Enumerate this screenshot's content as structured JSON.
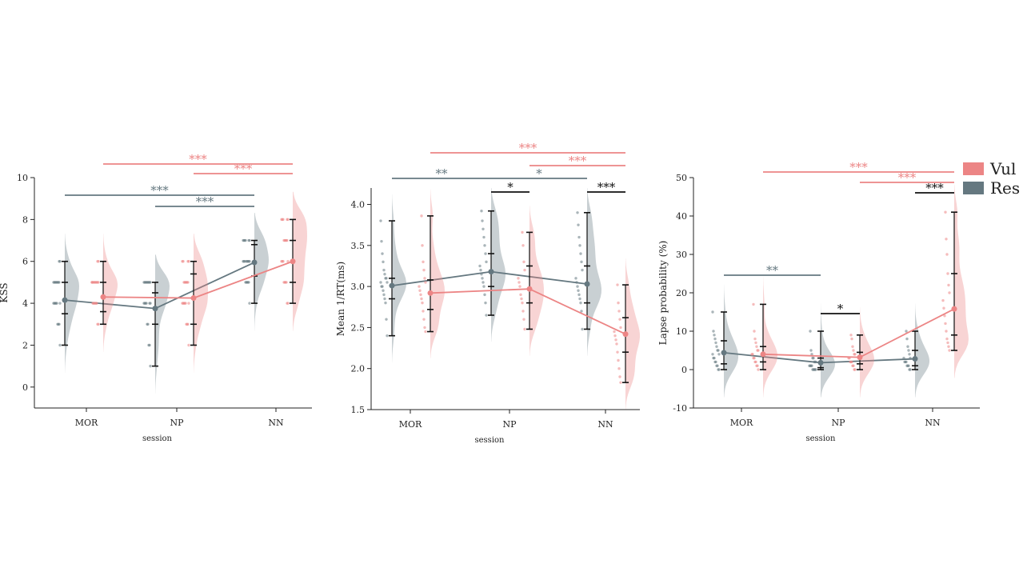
{
  "colors": {
    "vul": "#EC8585",
    "res": "#657880",
    "sig_black": "#111111"
  },
  "legend": {
    "items": [
      {
        "label": "Vul",
        "color": "#EC8585"
      },
      {
        "label": "Res",
        "color": "#657880"
      }
    ]
  },
  "chart_data": [
    {
      "type": "raincloud",
      "ylabel": "KSS",
      "xlabel": "session",
      "categories": [
        "MOR",
        "NP",
        "NN"
      ],
      "ylim": [
        -1,
        10
      ],
      "yticks": [
        0,
        2,
        4,
        6,
        8,
        10
      ],
      "series": [
        {
          "name": "Res",
          "color": "#657880",
          "means": [
            4.15,
            3.75,
            5.95
          ],
          "ci": [
            [
              3.5,
              5.0
            ],
            [
              3.0,
              4.5
            ],
            [
              5.3,
              6.8
            ]
          ],
          "range": [
            [
              2,
              6
            ],
            [
              1,
              5
            ],
            [
              4,
              7
            ]
          ],
          "points": [
            [
              2,
              3,
              3,
              3,
              4,
              4,
              4,
              4,
              4,
              4,
              5,
              5,
              5,
              5,
              5,
              5,
              5,
              5,
              6,
              6
            ],
            [
              1,
              2,
              2,
              3,
              3,
              4,
              4,
              4,
              4,
              4,
              4,
              5,
              5,
              5,
              5,
              5,
              5,
              5,
              5,
              5
            ],
            [
              4,
              5,
              5,
              5,
              5,
              5,
              6,
              6,
              6,
              6,
              6,
              6,
              6,
              6,
              7,
              7,
              7,
              7,
              7,
              7
            ]
          ]
        },
        {
          "name": "Vul",
          "color": "#EC8585",
          "means": [
            4.3,
            4.25,
            6.0
          ],
          "ci": [
            [
              3.6,
              5.0
            ],
            [
              3.0,
              5.4
            ],
            [
              5.0,
              7.0
            ]
          ],
          "range": [
            [
              3,
              6
            ],
            [
              2,
              6
            ],
            [
              4,
              8
            ]
          ],
          "points": [
            [
              3,
              3,
              4,
              4,
              4,
              4,
              4,
              4,
              5,
              5,
              5,
              5,
              5,
              5,
              5,
              5,
              5,
              5,
              6,
              6
            ],
            [
              2,
              3,
              3,
              3,
              4,
              4,
              4,
              4,
              4,
              4,
              5,
              5,
              5,
              5,
              5,
              5,
              6,
              6,
              6,
              6
            ],
            [
              4,
              4,
              5,
              5,
              5,
              5,
              6,
              6,
              6,
              6,
              7,
              7,
              7,
              7,
              7,
              8,
              8,
              8,
              8,
              8
            ]
          ]
        }
      ],
      "significance": [
        {
          "from": 0,
          "to": 2,
          "label": "***",
          "color": "vul"
        },
        {
          "from": 1,
          "to": 2,
          "label": "***",
          "color": "vul"
        },
        {
          "from": 0,
          "to": 2,
          "label": "***",
          "color": "res"
        },
        {
          "from": 1,
          "to": 2,
          "label": "***",
          "color": "res"
        }
      ]
    },
    {
      "type": "raincloud",
      "ylabel": "Mean 1/RT(ms)",
      "xlabel": "session",
      "categories": [
        "MOR",
        "NP",
        "NN"
      ],
      "ylim": [
        1.5,
        4.2
      ],
      "yticks": [
        1.5,
        2.0,
        2.5,
        3.0,
        3.5,
        4.0
      ],
      "series": [
        {
          "name": "Res",
          "color": "#657880",
          "means": [
            3.01,
            3.18,
            3.03
          ],
          "ci": [
            [
              2.85,
              3.1
            ],
            [
              3.0,
              3.4
            ],
            [
              2.8,
              3.25
            ]
          ],
          "range": [
            [
              2.4,
              3.8
            ],
            [
              2.65,
              3.92
            ],
            [
              2.48,
              3.9
            ]
          ],
          "points": [
            [
              2.4,
              2.6,
              2.8,
              2.85,
              2.9,
              2.95,
              3.0,
              3.0,
              3.05,
              3.05,
              3.1,
              3.1,
              3.15,
              3.2,
              3.3,
              3.4,
              3.55,
              3.8
            ],
            [
              2.65,
              2.8,
              2.9,
              3.0,
              3.05,
              3.1,
              3.15,
              3.2,
              3.25,
              3.3,
              3.4,
              3.5,
              3.6,
              3.7,
              3.8,
              3.92
            ],
            [
              2.48,
              2.7,
              2.8,
              2.85,
              2.9,
              2.95,
              3.0,
              3.05,
              3.1,
              3.2,
              3.3,
              3.4,
              3.5,
              3.6,
              3.75,
              3.9
            ]
          ]
        },
        {
          "name": "Vul",
          "color": "#EC8585",
          "means": [
            2.92,
            2.97,
            2.42
          ],
          "ci": [
            [
              2.72,
              3.08
            ],
            [
              2.8,
              3.25
            ],
            [
              2.2,
              2.62
            ]
          ],
          "range": [
            [
              2.45,
              3.86
            ],
            [
              2.48,
              3.66
            ],
            [
              1.83,
              3.02
            ]
          ],
          "points": [
            [
              2.45,
              2.5,
              2.6,
              2.7,
              2.8,
              2.85,
              2.9,
              2.95,
              3.0,
              3.05,
              3.1,
              3.2,
              3.3,
              3.5,
              3.86
            ],
            [
              2.48,
              2.6,
              2.7,
              2.8,
              2.85,
              2.9,
              3.0,
              3.05,
              3.1,
              3.2,
              3.3,
              3.5,
              3.66
            ],
            [
              1.83,
              1.9,
              2.0,
              2.1,
              2.2,
              2.3,
              2.35,
              2.4,
              2.45,
              2.5,
              2.6,
              2.7,
              2.8,
              3.02
            ]
          ]
        }
      ],
      "significance": [
        {
          "from": 0,
          "to": 2,
          "label": "***",
          "color": "vul"
        },
        {
          "from": 1,
          "to": 2,
          "label": "***",
          "color": "vul"
        },
        {
          "from": 0,
          "to": 1,
          "label": "**",
          "color": "res"
        },
        {
          "from": 1,
          "to": 2,
          "label": "*",
          "color": "res"
        },
        {
          "within": 1,
          "label": "*",
          "color": "black"
        },
        {
          "within": 2,
          "label": "***",
          "color": "black"
        }
      ]
    },
    {
      "type": "raincloud",
      "ylabel": "Lapse probability (%)",
      "xlabel": "session",
      "categories": [
        "MOR",
        "NP",
        "NN"
      ],
      "ylim": [
        -10,
        50
      ],
      "yticks": [
        -10,
        0,
        10,
        20,
        30,
        40,
        50
      ],
      "series": [
        {
          "name": "Res",
          "color": "#657880",
          "means": [
            4.4,
            1.8,
            2.8
          ],
          "ci": [
            [
              1.5,
              7.5
            ],
            [
              0.5,
              3.0
            ],
            [
              1.0,
              5.0
            ]
          ],
          "range": [
            [
              0,
              15
            ],
            [
              0,
              10
            ],
            [
              0,
              10
            ]
          ],
          "points": [
            [
              0,
              0,
              1,
              1,
              2,
              2,
              3,
              3,
              4,
              4,
              5,
              5,
              6,
              7,
              8,
              9,
              10,
              15
            ],
            [
              0,
              0,
              0,
              0,
              0,
              1,
              1,
              1,
              1,
              2,
              2,
              2,
              3,
              3,
              4,
              5,
              10
            ],
            [
              0,
              0,
              1,
              1,
              1,
              2,
              2,
              2,
              3,
              3,
              4,
              5,
              6,
              8,
              10
            ]
          ]
        },
        {
          "name": "Vul",
          "color": "#EC8585",
          "means": [
            4.0,
            3.2,
            15.8
          ],
          "ci": [
            [
              2.0,
              6.0
            ],
            [
              1.5,
              4.5
            ],
            [
              9.0,
              25.0
            ]
          ],
          "range": [
            [
              0,
              17
            ],
            [
              0,
              9
            ],
            [
              5,
              41
            ]
          ],
          "points": [
            [
              0,
              1,
              1,
              2,
              2,
              3,
              3,
              4,
              4,
              5,
              5,
              6,
              7,
              8,
              10,
              17
            ],
            [
              0,
              0,
              1,
              1,
              2,
              2,
              2,
              3,
              3,
              4,
              4,
              5,
              6,
              8,
              9
            ],
            [
              5,
              6,
              7,
              8,
              10,
              12,
              14,
              16,
              18,
              20,
              22,
              25,
              30,
              34,
              41
            ]
          ]
        }
      ],
      "significance": [
        {
          "from": 0,
          "to": 2,
          "label": "***",
          "color": "vul"
        },
        {
          "from": 1,
          "to": 2,
          "label": "***",
          "color": "vul"
        },
        {
          "from": 0,
          "to": 1,
          "label": "**",
          "color": "res"
        },
        {
          "within": 1,
          "label": "*",
          "color": "black"
        },
        {
          "within": 2,
          "label": "***",
          "color": "black"
        }
      ]
    }
  ]
}
